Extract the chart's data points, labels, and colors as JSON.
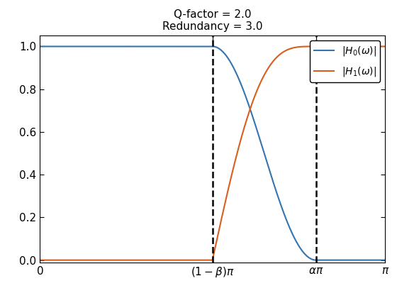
{
  "title_line1": "Q-factor = 2.0",
  "title_line2": "Redundancy = 3.0",
  "Q": 2.0,
  "redundancy": 3.0,
  "legend_labels": [
    "$|H_0(\\omega)|$",
    "$|H_1(\\omega)|$"
  ],
  "line_color_H0": "#3475b0",
  "line_color_H1": "#d95f1e",
  "dashed_color": "black",
  "dashed_style": "--",
  "linewidth": 1.5,
  "dashed_linewidth": 1.8,
  "xlim": [
    0,
    3.14159265358979
  ],
  "ylim": [
    -0.01,
    1.05
  ],
  "xtick_labels": [
    "$0$",
    "$(1-\\beta)\\pi$",
    "$\\alpha\\pi$",
    "$\\pi$"
  ],
  "ytick_vals": [
    0.0,
    0.2,
    0.4,
    0.6,
    0.8,
    1.0
  ],
  "background_color": "#ffffff",
  "legend_fontsize": 10,
  "title_fontsize": 11,
  "beta": 0.5,
  "alpha": 0.8
}
